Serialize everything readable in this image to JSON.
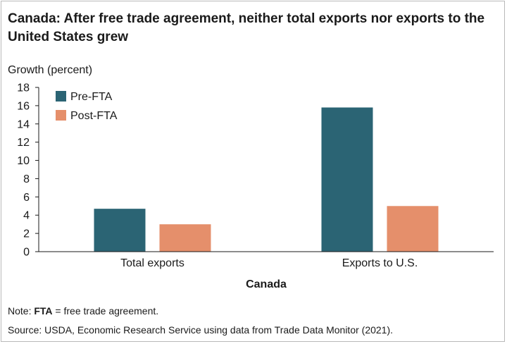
{
  "title": "Canada: After free trade agreement, neither total exports nor exports to the United States grew",
  "note": {
    "prefix": "Note: ",
    "term": "FTA",
    "definition": " = free trade agreement."
  },
  "source": "Source: USDA, Economic Research Service using data from Trade Data Monitor (2021).",
  "chart_data": {
    "type": "bar",
    "title": "Canada: After free trade agreement, neither total exports nor exports to the United States grew",
    "ylabel": "Growth (percent)",
    "xlabel": "Canada",
    "categories": [
      "Total exports",
      "Exports to U.S."
    ],
    "series": [
      {
        "name": "Pre-FTA",
        "values": [
          4.7,
          15.8
        ],
        "color": "#2b6474"
      },
      {
        "name": "Post-FTA",
        "values": [
          3.0,
          5.0
        ],
        "color": "#e58f6b"
      }
    ],
    "yticks": [
      0,
      2,
      4,
      6,
      8,
      10,
      12,
      14,
      16,
      18
    ],
    "ylim": [
      0,
      18
    ],
    "grid": false,
    "legend_position": "top-left"
  }
}
